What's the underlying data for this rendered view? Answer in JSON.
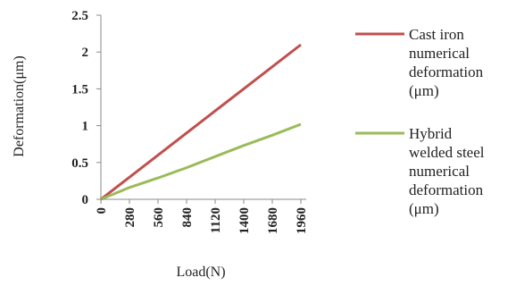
{
  "chart_data": {
    "type": "line",
    "title": "",
    "xlabel": "Load(N)",
    "ylabel": "Deformation(μm)",
    "x": [
      0,
      280,
      560,
      840,
      1120,
      1400,
      1680,
      1960
    ],
    "x_tick_labels": [
      "0",
      "280",
      "560",
      "840",
      "1120",
      "1400",
      "1680",
      "1960"
    ],
    "y_tick_labels": [
      "0",
      "0.5",
      "1",
      "1.5",
      "2",
      "2.5"
    ],
    "ylim": [
      0,
      2.5
    ],
    "grid": false,
    "legend_position": "right",
    "series": [
      {
        "name": "Cast iron numerical deformation (μm)",
        "legend_lines": [
          "Cast iron",
          "numerical",
          "deformation",
          "(μm)"
        ],
        "color": "#c0504d",
        "values": [
          0,
          0.3,
          0.6,
          0.9,
          1.2,
          1.5,
          1.8,
          2.1
        ]
      },
      {
        "name": "Hybrid welded steel numerical deformation (μm)",
        "legend_lines": [
          "Hybrid",
          "welded steel",
          "numerical",
          "deformation",
          "(μm)"
        ],
        "color": "#9bbb59",
        "values": [
          0,
          0.16,
          0.29,
          0.43,
          0.58,
          0.73,
          0.87,
          1.02
        ]
      }
    ]
  }
}
